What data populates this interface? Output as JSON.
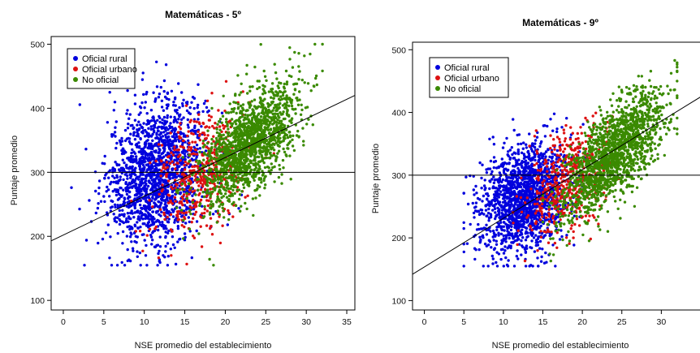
{
  "chart_data": [
    {
      "type": "scatter",
      "title": "Matemáticas - 5º",
      "xlabel": "NSE promedio del establecimiento",
      "ylabel": "Puntaje promedio",
      "xlim": [
        -1.5,
        36
      ],
      "ylim": [
        85,
        512
      ],
      "xticks": [
        "0",
        "5",
        "10",
        "15",
        "20",
        "25",
        "30",
        "35"
      ],
      "yticks": [
        "100",
        "200",
        "300",
        "400",
        "500"
      ],
      "legend_position": "top-left",
      "series": [
        {
          "name": "Oficial rural",
          "color": "#0000dd",
          "x_mean": 11.5,
          "x_sd": 3.0,
          "y_at_mean": 298,
          "slope": 4.0,
          "y_sd": 55,
          "x_range": [
            1,
            22
          ],
          "count": 1600
        },
        {
          "name": "Oficial urbano",
          "color": "#dd1111",
          "x_mean": 17,
          "x_sd": 2.8,
          "y_at_mean": 300,
          "slope": 5.0,
          "y_sd": 45,
          "x_range": [
            8,
            26
          ],
          "count": 500
        },
        {
          "name": "No oficial",
          "color": "#3a8a00",
          "x_mean": 23,
          "x_sd": 3.0,
          "y_at_mean": 345,
          "slope": 9.0,
          "y_sd": 38,
          "x_range": [
            14,
            32
          ],
          "count": 1600
        }
      ],
      "lines": [
        {
          "kind": "hline",
          "y": 300
        },
        {
          "kind": "regression",
          "x0": -1.5,
          "y0": 193,
          "x1": 36,
          "y1": 420
        }
      ]
    },
    {
      "type": "scatter",
      "title": "Matemáticas - 9º",
      "xlabel": "NSE promedio del establecimiento",
      "ylabel": "Puntaje promedio",
      "xlim": [
        -1.5,
        35
      ],
      "ylim": [
        85,
        512
      ],
      "xticks": [
        "0",
        "5",
        "10",
        "15",
        "20",
        "25",
        "30"
      ],
      "yticks": [
        "100",
        "200",
        "300",
        "400",
        "500"
      ],
      "legend_position": "top-left",
      "series": [
        {
          "name": "Oficial rural",
          "color": "#0000dd",
          "x_mean": 12.5,
          "x_sd": 2.8,
          "y_at_mean": 262,
          "slope": 4.0,
          "y_sd": 42,
          "x_range": [
            5,
            22
          ],
          "count": 1600
        },
        {
          "name": "Oficial urbano",
          "color": "#dd1111",
          "x_mean": 18,
          "x_sd": 2.6,
          "y_at_mean": 290,
          "slope": 6.0,
          "y_sd": 38,
          "x_range": [
            10,
            26
          ],
          "count": 500
        },
        {
          "name": "No oficial",
          "color": "#3a8a00",
          "x_mean": 24,
          "x_sd": 3.2,
          "y_at_mean": 335,
          "slope": 11.0,
          "y_sd": 35,
          "x_range": [
            15,
            32
          ],
          "count": 1600
        }
      ],
      "lines": [
        {
          "kind": "hline",
          "y": 300
        },
        {
          "kind": "regression",
          "x0": -1.5,
          "y0": 142,
          "x1": 35,
          "y1": 425
        }
      ]
    }
  ]
}
